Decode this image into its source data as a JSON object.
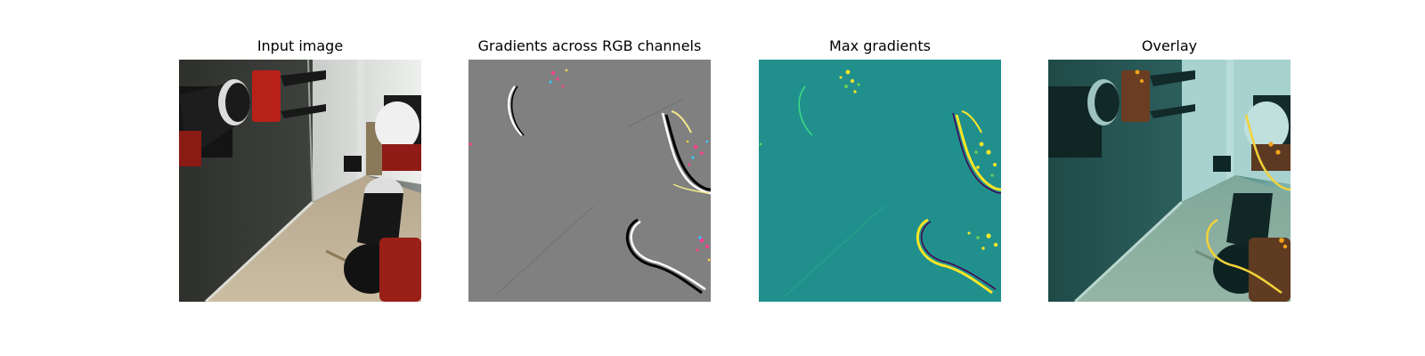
{
  "figure": {
    "panels": [
      {
        "title": "Input image"
      },
      {
        "title": "Gradients across RGB channels"
      },
      {
        "title": "Max gradients"
      },
      {
        "title": "Overlay"
      }
    ]
  }
}
